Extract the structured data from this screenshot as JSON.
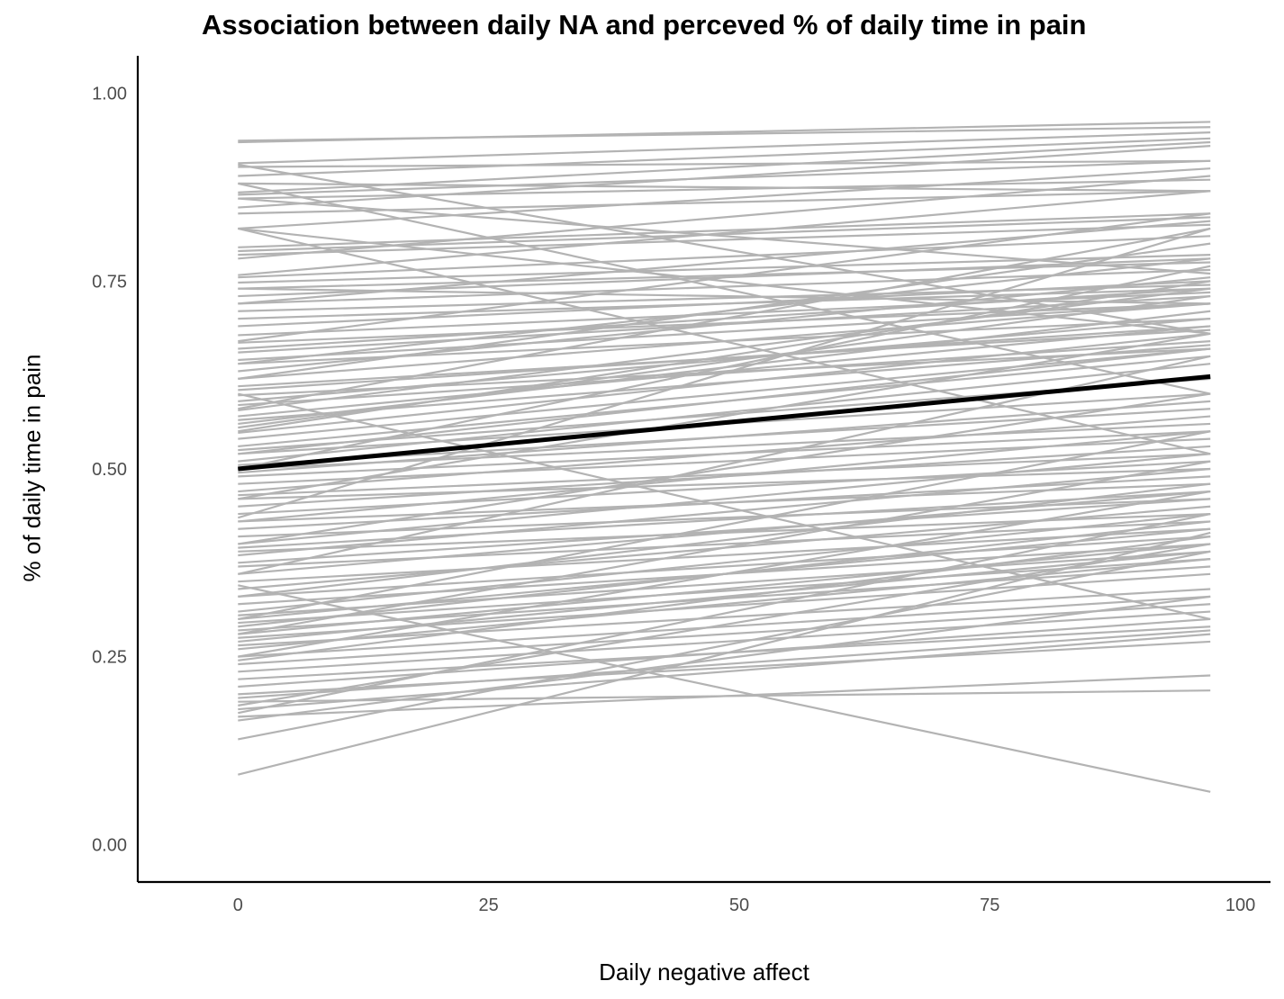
{
  "chart_data": {
    "type": "line",
    "title": "Association between daily NA and perceved % of daily time in pain",
    "xlabel": "Daily negative affect",
    "ylabel": "% of daily time in pain",
    "xlim": [
      -10,
      103
    ],
    "ylim": [
      -0.05,
      1.05
    ],
    "x_ticks": [
      0,
      25,
      50,
      75,
      100
    ],
    "x_tick_labels": [
      "0",
      "25",
      "50",
      "75",
      "100"
    ],
    "y_ticks": [
      0,
      0.25,
      0.5,
      0.75,
      1.0
    ],
    "y_tick_labels": [
      "0.00",
      "0.25",
      "0.50",
      "0.75",
      "1.00"
    ],
    "x_range": [
      0,
      97
    ],
    "grid": false,
    "legend": "none",
    "colors": {
      "subject_lines": "#b3b3b3",
      "fixed_effect_line": "#000000"
    },
    "fixed_effect": {
      "x": [
        0,
        97
      ],
      "y": [
        0.5,
        0.623
      ]
    },
    "subject_lines": [
      [
        0.935,
        0.962
      ],
      [
        0.937,
        0.955
      ],
      [
        0.907,
        0.948
      ],
      [
        0.902,
        0.91
      ],
      [
        0.89,
        0.94
      ],
      [
        0.88,
        0.87
      ],
      [
        0.868,
        0.935
      ],
      [
        0.865,
        0.91
      ],
      [
        0.86,
        0.885
      ],
      [
        0.848,
        0.93
      ],
      [
        0.84,
        0.87
      ],
      [
        0.82,
        0.9
      ],
      [
        0.795,
        0.84
      ],
      [
        0.79,
        0.835
      ],
      [
        0.785,
        0.825
      ],
      [
        0.78,
        0.89
      ],
      [
        0.758,
        0.87
      ],
      [
        0.755,
        0.81
      ],
      [
        0.748,
        0.785
      ],
      [
        0.74,
        0.775
      ],
      [
        0.73,
        0.78
      ],
      [
        0.72,
        0.765
      ],
      [
        0.71,
        0.745
      ],
      [
        0.7,
        0.74
      ],
      [
        0.69,
        0.75
      ],
      [
        0.678,
        0.735
      ],
      [
        0.668,
        0.72
      ],
      [
        0.66,
        0.74
      ],
      [
        0.655,
        0.73
      ],
      [
        0.645,
        0.72
      ],
      [
        0.64,
        0.7
      ],
      [
        0.63,
        0.755
      ],
      [
        0.62,
        0.72
      ],
      [
        0.61,
        0.685
      ],
      [
        0.605,
        0.69
      ],
      [
        0.598,
        0.66
      ],
      [
        0.59,
        0.7
      ],
      [
        0.585,
        0.67
      ],
      [
        0.578,
        0.74
      ],
      [
        0.57,
        0.69
      ],
      [
        0.565,
        0.665
      ],
      [
        0.555,
        0.73
      ],
      [
        0.548,
        0.68
      ],
      [
        0.54,
        0.66
      ],
      [
        0.53,
        0.65
      ],
      [
        0.525,
        0.62
      ],
      [
        0.52,
        0.6
      ],
      [
        0.51,
        0.64
      ],
      [
        0.505,
        0.58
      ],
      [
        0.5,
        0.56
      ],
      [
        0.495,
        0.59
      ],
      [
        0.49,
        0.55
      ],
      [
        0.48,
        0.54
      ],
      [
        0.47,
        0.57
      ],
      [
        0.465,
        0.52
      ],
      [
        0.46,
        0.5
      ],
      [
        0.45,
        0.53
      ],
      [
        0.44,
        0.51
      ],
      [
        0.435,
        0.82
      ],
      [
        0.43,
        0.48
      ],
      [
        0.42,
        0.49
      ],
      [
        0.41,
        0.46
      ],
      [
        0.4,
        0.52
      ],
      [
        0.395,
        0.47
      ],
      [
        0.39,
        0.44
      ],
      [
        0.385,
        0.5
      ],
      [
        0.375,
        0.46
      ],
      [
        0.37,
        0.43
      ],
      [
        0.36,
        0.47
      ],
      [
        0.35,
        0.42
      ],
      [
        0.345,
        0.07
      ],
      [
        0.34,
        0.45
      ],
      [
        0.33,
        0.41
      ],
      [
        0.32,
        0.4
      ],
      [
        0.31,
        0.44
      ],
      [
        0.305,
        0.39
      ],
      [
        0.3,
        0.42
      ],
      [
        0.295,
        0.38
      ],
      [
        0.29,
        0.43
      ],
      [
        0.285,
        0.37
      ],
      [
        0.28,
        0.4
      ],
      [
        0.275,
        0.36
      ],
      [
        0.27,
        0.39
      ],
      [
        0.265,
        0.34
      ],
      [
        0.26,
        0.38
      ],
      [
        0.25,
        0.33
      ],
      [
        0.245,
        0.41
      ],
      [
        0.24,
        0.32
      ],
      [
        0.23,
        0.31
      ],
      [
        0.22,
        0.29
      ],
      [
        0.21,
        0.3
      ],
      [
        0.2,
        0.27
      ],
      [
        0.195,
        0.285
      ],
      [
        0.19,
        0.205
      ],
      [
        0.185,
        0.4
      ],
      [
        0.18,
        0.28
      ],
      [
        0.175,
        0.44
      ],
      [
        0.17,
        0.225
      ],
      [
        0.14,
        0.39
      ],
      [
        0.093,
        0.415
      ],
      [
        0.6,
        0.3
      ],
      [
        0.82,
        0.52
      ],
      [
        0.88,
        0.6
      ],
      [
        0.905,
        0.68
      ],
      [
        0.58,
        0.82
      ],
      [
        0.62,
        0.8
      ],
      [
        0.5,
        0.77
      ],
      [
        0.46,
        0.68
      ],
      [
        0.36,
        0.65
      ],
      [
        0.3,
        0.55
      ],
      [
        0.28,
        0.51
      ],
      [
        0.25,
        0.47
      ],
      [
        0.55,
        0.75
      ],
      [
        0.67,
        0.84
      ],
      [
        0.72,
        0.83
      ],
      [
        0.4,
        0.6
      ],
      [
        0.52,
        0.66
      ],
      [
        0.33,
        0.48
      ],
      [
        0.43,
        0.55
      ],
      [
        0.165,
        0.33
      ],
      [
        0.56,
        0.71
      ],
      [
        0.64,
        0.78
      ],
      [
        0.74,
        0.72
      ],
      [
        0.86,
        0.76
      ],
      [
        0.82,
        0.68
      ]
    ]
  }
}
